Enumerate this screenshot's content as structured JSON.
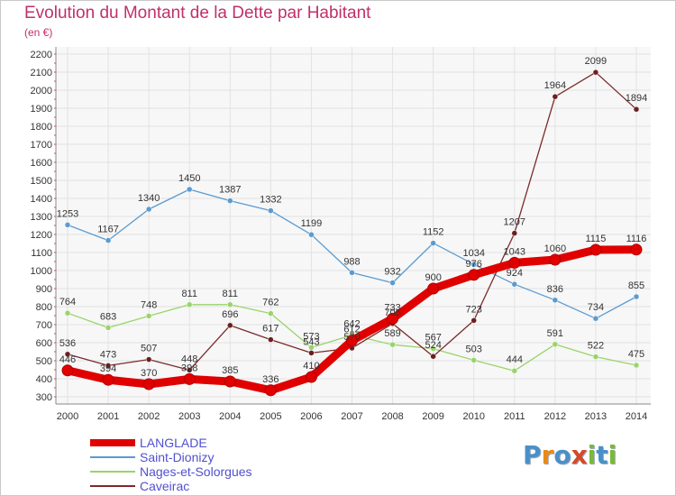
{
  "title": "Evolution du Montant de la Dette par Habitant",
  "unit_label": "(en €)",
  "logo": {
    "letters": [
      "P",
      "r",
      "o",
      "x",
      "i",
      "t",
      "i"
    ],
    "colors": [
      "#4a90c8",
      "#e88a1a",
      "#4a90c8",
      "#d24a2a",
      "#7ab83a",
      "#4a90c8",
      "#7ab83a"
    ]
  },
  "chart_data": {
    "type": "line",
    "title": "Evolution du Montant de la Dette par Habitant",
    "ylabel": "(en €)",
    "xlabel": "",
    "x": [
      "2000",
      "2001",
      "2002",
      "2003",
      "2004",
      "2005",
      "2006",
      "2007",
      "2008",
      "2009",
      "2010",
      "2011",
      "2012",
      "2013",
      "2014"
    ],
    "ylim": [
      300,
      2200
    ],
    "yticks": [
      300,
      400,
      500,
      600,
      700,
      800,
      900,
      1000,
      1100,
      1200,
      1300,
      1400,
      1500,
      1600,
      1700,
      1800,
      1900,
      2000,
      2100,
      2200
    ],
    "grid": true,
    "legend": "bottom-left",
    "series": [
      {
        "name": "LANGLADE",
        "color": "#e00000",
        "values": [
          446,
          394,
          370,
          398,
          385,
          336,
          410,
          612,
          733,
          900,
          976,
          1043,
          1060,
          1115,
          1116
        ],
        "labels": [
          "446",
          "394",
          "370",
          "398",
          "385",
          "336",
          "410",
          "612",
          "733",
          "900",
          "976",
          "1043",
          "1060",
          "1115",
          "1116"
        ]
      },
      {
        "name": "Saint-Dionizy",
        "color": "#5b9bd0",
        "values": [
          1253,
          1167,
          1340,
          1450,
          1387,
          1332,
          1199,
          988,
          932,
          1152,
          1034,
          924,
          836,
          734,
          855
        ],
        "labels": [
          "1253",
          "1167",
          "1340",
          "1450",
          "1387",
          "1332",
          "1199",
          "988",
          "932",
          "1152",
          "1034",
          "924",
          "836",
          "734",
          "855"
        ]
      },
      {
        "name": "Nages-et-Solorgues",
        "color": "#99d46a",
        "values": [
          764,
          683,
          748,
          811,
          811,
          762,
          573,
          642,
          589,
          567,
          503,
          444,
          591,
          522,
          475
        ],
        "labels": [
          "764",
          "683",
          "748",
          "811",
          "811",
          "762",
          "573",
          "642",
          "589",
          "567",
          "503",
          "444",
          "591",
          "522",
          "475"
        ]
      },
      {
        "name": "Caveirac",
        "color": "#7b2a2a",
        "values": [
          536,
          473,
          507,
          448,
          696,
          617,
          543,
          570,
          706,
          524,
          723,
          1207,
          1964,
          2099,
          1894
        ],
        "labels": [
          "536",
          "473",
          "507",
          "448",
          "696",
          "617",
          "543",
          "570",
          "706",
          "524",
          "723",
          "1207",
          "1964",
          "2099",
          "1894"
        ]
      }
    ]
  }
}
